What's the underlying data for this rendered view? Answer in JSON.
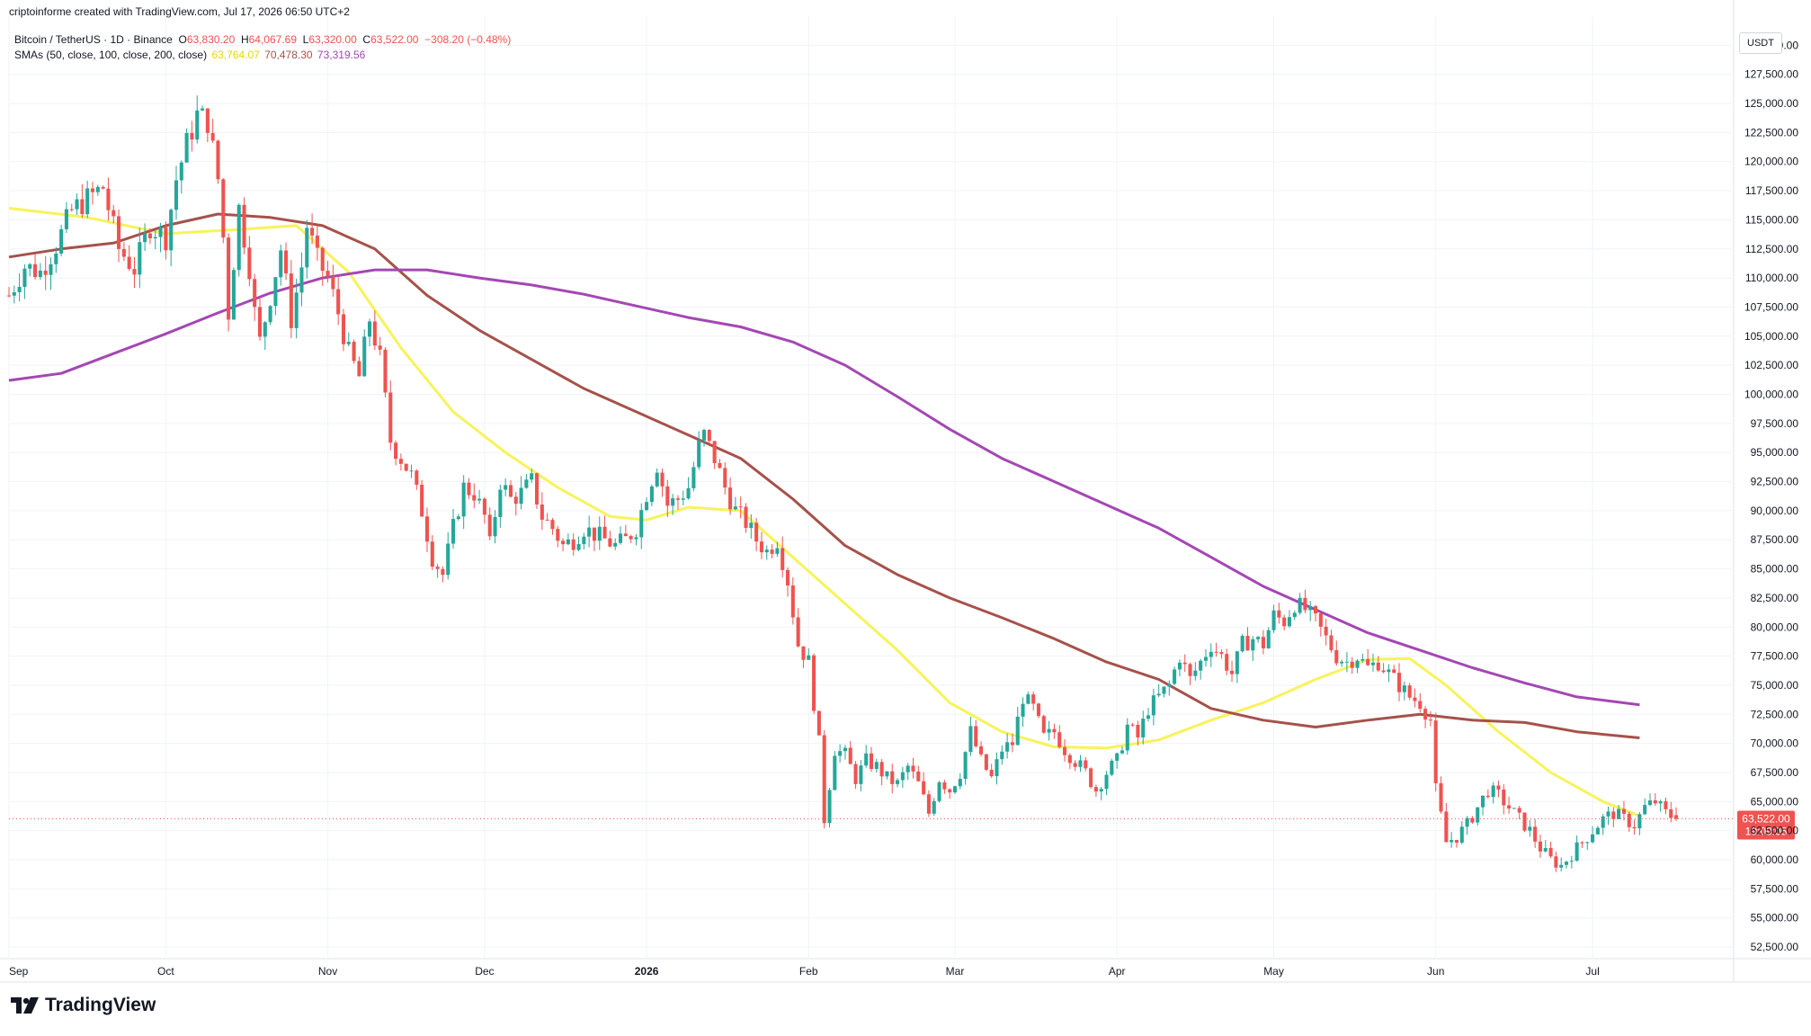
{
  "header": {
    "credit": "criptoinforme created with TradingView.com, Jul 17, 2026 06:50 UTC+2"
  },
  "legend": {
    "symbol": "Bitcoin / TetherUS · 1D · Binance",
    "open_label": "O",
    "open": "63,830.20",
    "high_label": "H",
    "high": "64,067.69",
    "low_label": "L",
    "low": "63,320.00",
    "close_label": "C",
    "close": "63,522.00",
    "change": "−308.20 (−0.48%)",
    "sma_label": "SMAs (50, close, 100, close, 200, close)",
    "sma50": "63,764.07",
    "sma100": "70,478.30",
    "sma200": "73,319.56"
  },
  "axis": {
    "unit": "USDT",
    "price_badge": "63,522.00",
    "countdown": "19:09:05"
  },
  "brand": {
    "name": "TradingView"
  },
  "colors": {
    "up": "#26a69a",
    "down": "#ef5350",
    "sma50": "#f7f35b",
    "sma100": "#a5524a",
    "sma200": "#a447b3",
    "grid": "#f0f3fa"
  },
  "chart_data": {
    "type": "candlestick",
    "title": "Bitcoin / TetherUS · 1D · Binance",
    "ylim": [
      51500,
      132500
    ],
    "y_ticks": [
      52500,
      55000,
      57500,
      60000,
      62500,
      65000,
      67500,
      70000,
      72500,
      75000,
      77500,
      80000,
      82500,
      85000,
      87500,
      90000,
      92500,
      95000,
      97500,
      100000,
      102500,
      105000,
      107500,
      110000,
      112500,
      115000,
      117500,
      120000,
      122500,
      125000,
      127500,
      130000
    ],
    "x_ticks": [
      {
        "label": "Sep",
        "day": 0
      },
      {
        "label": "Oct",
        "day": 30
      },
      {
        "label": "Nov",
        "day": 61
      },
      {
        "label": "Dec",
        "day": 91
      },
      {
        "label": "2026",
        "day": 122
      },
      {
        "label": "Feb",
        "day": 153
      },
      {
        "label": "Mar",
        "day": 181
      },
      {
        "label": "Apr",
        "day": 212
      },
      {
        "label": "May",
        "day": 242
      },
      {
        "label": "Jun",
        "day": 273
      },
      {
        "label": "Jul",
        "day": 303
      }
    ],
    "last_day": 319,
    "close_path": [
      [
        0,
        108500
      ],
      [
        3,
        111000
      ],
      [
        6,
        110500
      ],
      [
        9,
        112800
      ],
      [
        12,
        115800
      ],
      [
        15,
        116800
      ],
      [
        18,
        117800
      ],
      [
        21,
        112500
      ],
      [
        24,
        110800
      ],
      [
        27,
        114500
      ],
      [
        30,
        113500
      ],
      [
        32,
        118500
      ],
      [
        34,
        121500
      ],
      [
        36,
        124000
      ],
      [
        38,
        123500
      ],
      [
        40,
        118500
      ],
      [
        41,
        113500
      ],
      [
        42,
        107000
      ],
      [
        44,
        116000
      ],
      [
        46,
        111000
      ],
      [
        47,
        107000
      ],
      [
        48,
        104500
      ],
      [
        50,
        108500
      ],
      [
        52,
        112500
      ],
      [
        54,
        106500
      ],
      [
        56,
        111000
      ],
      [
        57,
        114500
      ],
      [
        59,
        111500
      ],
      [
        61,
        110000
      ],
      [
        63,
        107000
      ],
      [
        65,
        103500
      ],
      [
        67,
        101500
      ],
      [
        69,
        106500
      ],
      [
        71,
        103000
      ],
      [
        73,
        96000
      ],
      [
        75,
        94500
      ],
      [
        77,
        93000
      ],
      [
        79,
        90000
      ],
      [
        81,
        86000
      ],
      [
        83,
        84500
      ],
      [
        85,
        88500
      ],
      [
        87,
        92000
      ],
      [
        89,
        91500
      ],
      [
        91,
        89500
      ],
      [
        92,
        87000
      ],
      [
        94,
        92500
      ],
      [
        96,
        91000
      ],
      [
        98,
        91500
      ],
      [
        100,
        92500
      ],
      [
        102,
        89500
      ],
      [
        104,
        88500
      ],
      [
        106,
        87000
      ],
      [
        108,
        87500
      ],
      [
        110,
        88500
      ],
      [
        112,
        88000
      ],
      [
        114,
        87500
      ],
      [
        116,
        87000
      ],
      [
        118,
        87500
      ],
      [
        120,
        88500
      ],
      [
        122,
        91500
      ],
      [
        124,
        94000
      ],
      [
        126,
        90500
      ],
      [
        128,
        91000
      ],
      [
        130,
        92000
      ],
      [
        132,
        95500
      ],
      [
        133,
        96500
      ],
      [
        135,
        94500
      ],
      [
        137,
        92000
      ],
      [
        139,
        90000
      ],
      [
        141,
        89000
      ],
      [
        143,
        87500
      ],
      [
        145,
        86500
      ],
      [
        147,
        87500
      ],
      [
        149,
        84000
      ],
      [
        151,
        78500
      ],
      [
        153,
        77000
      ],
      [
        155,
        70000
      ],
      [
        156,
        63500
      ],
      [
        158,
        69500
      ],
      [
        160,
        69000
      ],
      [
        162,
        67000
      ],
      [
        164,
        68500
      ],
      [
        166,
        68000
      ],
      [
        168,
        67000
      ],
      [
        170,
        66500
      ],
      [
        172,
        68000
      ],
      [
        174,
        66500
      ],
      [
        176,
        64000
      ],
      [
        178,
        67000
      ],
      [
        180,
        66000
      ],
      [
        182,
        67500
      ],
      [
        184,
        71000
      ],
      [
        186,
        68500
      ],
      [
        188,
        67000
      ],
      [
        190,
        69500
      ],
      [
        192,
        70000
      ],
      [
        194,
        74000
      ],
      [
        196,
        73000
      ],
      [
        198,
        70500
      ],
      [
        200,
        71000
      ],
      [
        202,
        69500
      ],
      [
        204,
        68500
      ],
      [
        206,
        67500
      ],
      [
        208,
        66000
      ],
      [
        210,
        67500
      ],
      [
        212,
        68500
      ],
      [
        214,
        71500
      ],
      [
        216,
        70500
      ],
      [
        218,
        73000
      ],
      [
        220,
        74000
      ],
      [
        222,
        75000
      ],
      [
        224,
        77500
      ],
      [
        226,
        75500
      ],
      [
        228,
        77000
      ],
      [
        230,
        78500
      ],
      [
        232,
        77500
      ],
      [
        234,
        76000
      ],
      [
        236,
        78500
      ],
      [
        238,
        79000
      ],
      [
        240,
        78500
      ],
      [
        242,
        81000
      ],
      [
        244,
        80500
      ],
      [
        246,
        82000
      ],
      [
        248,
        81500
      ],
      [
        250,
        80500
      ],
      [
        252,
        79000
      ],
      [
        254,
        77500
      ],
      [
        256,
        77000
      ],
      [
        258,
        77500
      ],
      [
        260,
        76500
      ],
      [
        262,
        77000
      ],
      [
        264,
        76000
      ],
      [
        266,
        75000
      ],
      [
        268,
        74000
      ],
      [
        270,
        73500
      ],
      [
        272,
        72000
      ],
      [
        273,
        66000
      ],
      [
        275,
        61500
      ],
      [
        277,
        62000
      ],
      [
        279,
        63000
      ],
      [
        281,
        64500
      ],
      [
        283,
        66000
      ],
      [
        285,
        65500
      ],
      [
        287,
        64500
      ],
      [
        289,
        63500
      ],
      [
        291,
        62500
      ],
      [
        293,
        61000
      ],
      [
        295,
        60000
      ],
      [
        297,
        59500
      ],
      [
        299,
        60500
      ],
      [
        301,
        61500
      ],
      [
        303,
        62500
      ],
      [
        305,
        63500
      ],
      [
        307,
        64000
      ],
      [
        309,
        63500
      ],
      [
        311,
        63000
      ],
      [
        313,
        64500
      ],
      [
        315,
        65000
      ],
      [
        317,
        64000
      ],
      [
        319,
        63522
      ]
    ],
    "series": [
      {
        "name": "SMA 50",
        "values": [
          [
            0,
            116000
          ],
          [
            15,
            115200
          ],
          [
            30,
            113800
          ],
          [
            45,
            114200
          ],
          [
            55,
            114500
          ],
          [
            65,
            110500
          ],
          [
            75,
            104000
          ],
          [
            85,
            98500
          ],
          [
            95,
            95000
          ],
          [
            105,
            92000
          ],
          [
            115,
            89500
          ],
          [
            122,
            89200
          ],
          [
            130,
            90300
          ],
          [
            140,
            90000
          ],
          [
            150,
            86000
          ],
          [
            160,
            82000
          ],
          [
            170,
            78000
          ],
          [
            180,
            73500
          ],
          [
            190,
            71000
          ],
          [
            200,
            69700
          ],
          [
            210,
            69600
          ],
          [
            220,
            70300
          ],
          [
            230,
            72000
          ],
          [
            240,
            73500
          ],
          [
            250,
            75500
          ],
          [
            260,
            77200
          ],
          [
            268,
            77300
          ],
          [
            275,
            75000
          ],
          [
            285,
            71000
          ],
          [
            295,
            67500
          ],
          [
            305,
            65000
          ],
          [
            312,
            63764
          ]
        ]
      },
      {
        "name": "SMA 100",
        "values": [
          [
            0,
            111800
          ],
          [
            10,
            112500
          ],
          [
            20,
            113000
          ],
          [
            30,
            114500
          ],
          [
            40,
            115500
          ],
          [
            50,
            115200
          ],
          [
            60,
            114500
          ],
          [
            70,
            112500
          ],
          [
            80,
            108500
          ],
          [
            90,
            105500
          ],
          [
            100,
            103000
          ],
          [
            110,
            100500
          ],
          [
            120,
            98500
          ],
          [
            130,
            96500
          ],
          [
            140,
            94500
          ],
          [
            150,
            91000
          ],
          [
            160,
            87000
          ],
          [
            170,
            84500
          ],
          [
            180,
            82500
          ],
          [
            190,
            80800
          ],
          [
            200,
            79000
          ],
          [
            210,
            77000
          ],
          [
            220,
            75500
          ],
          [
            230,
            73000
          ],
          [
            240,
            72000
          ],
          [
            250,
            71400
          ],
          [
            260,
            72000
          ],
          [
            270,
            72500
          ],
          [
            280,
            72000
          ],
          [
            290,
            71800
          ],
          [
            300,
            71000
          ],
          [
            312,
            70478
          ]
        ]
      },
      {
        "name": "SMA 200",
        "values": [
          [
            0,
            101200
          ],
          [
            10,
            101800
          ],
          [
            20,
            103500
          ],
          [
            30,
            105200
          ],
          [
            40,
            107000
          ],
          [
            50,
            108700
          ],
          [
            60,
            110000
          ],
          [
            70,
            110700
          ],
          [
            80,
            110700
          ],
          [
            90,
            110000
          ],
          [
            100,
            109400
          ],
          [
            110,
            108600
          ],
          [
            120,
            107600
          ],
          [
            130,
            106600
          ],
          [
            140,
            105800
          ],
          [
            150,
            104500
          ],
          [
            160,
            102500
          ],
          [
            170,
            99800
          ],
          [
            180,
            97000
          ],
          [
            190,
            94500
          ],
          [
            200,
            92500
          ],
          [
            210,
            90500
          ],
          [
            220,
            88500
          ],
          [
            230,
            86000
          ],
          [
            240,
            83500
          ],
          [
            250,
            81500
          ],
          [
            260,
            79500
          ],
          [
            270,
            78000
          ],
          [
            280,
            76500
          ],
          [
            290,
            75200
          ],
          [
            300,
            74000
          ],
          [
            312,
            73320
          ]
        ]
      }
    ]
  }
}
